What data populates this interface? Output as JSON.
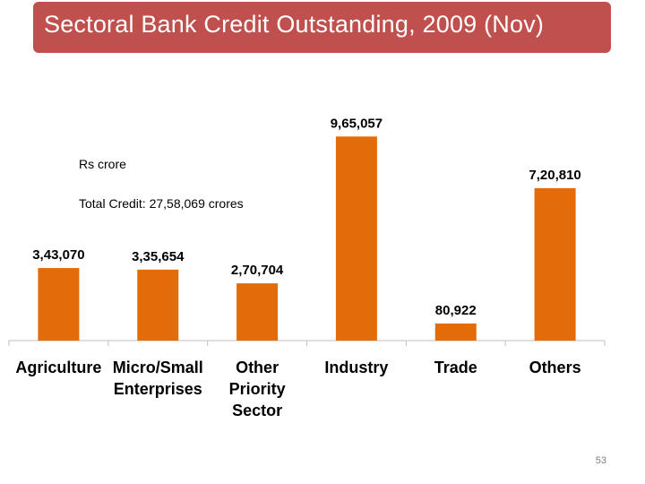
{
  "slide": {
    "title": "Sectoral Bank Credit Outstanding, 2009 (Nov)",
    "unit_note": "Rs crore",
    "total_note": "Total Credit:  27,58,069 crores",
    "page_number": "53"
  },
  "colors": {
    "title_bg": "#c0504d",
    "bar": "#e36c0a",
    "axis": "#bfbfbf"
  },
  "chart_data": {
    "type": "bar",
    "title": "Sectoral Bank Credit Outstanding, 2009 (Nov)",
    "ylabel": "Rs crore",
    "xlabel": "",
    "categories": [
      [
        "Agriculture"
      ],
      [
        "Micro/Small",
        "Enterprises"
      ],
      [
        "Other",
        "Priority",
        "Sector"
      ],
      [
        "Industry"
      ],
      [
        "Trade"
      ],
      [
        "Others"
      ]
    ],
    "values": [
      343070,
      335654,
      270704,
      965057,
      80922,
      720810
    ],
    "value_labels": [
      "3,43,070",
      "3,35,654",
      "2,70,704",
      "9,65,057",
      "80,922",
      "7,20,810"
    ],
    "ylim": [
      0,
      1000000
    ],
    "grid": false,
    "legend": "none"
  }
}
